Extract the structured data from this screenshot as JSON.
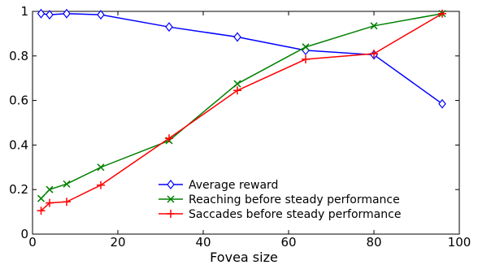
{
  "chart_data": {
    "type": "line",
    "title": "",
    "xlabel": "Fovea size",
    "ylabel": "",
    "xlim": [
      0,
      100
    ],
    "ylim": [
      0,
      1
    ],
    "xticks": [
      0,
      20,
      40,
      60,
      80,
      100
    ],
    "yticks": [
      0,
      0.2,
      0.4,
      0.6,
      0.8,
      1
    ],
    "ytick_labels": [
      "0",
      "0.2",
      "0.4",
      "0.6",
      "0.8",
      "1"
    ],
    "grid": false,
    "legend_position": "lower-center",
    "series": [
      {
        "name": "Average reward",
        "color": "#0000ff",
        "marker": "diamond",
        "x": [
          2,
          4,
          8,
          16,
          32,
          48,
          64,
          80,
          96
        ],
        "y": [
          0.99,
          0.985,
          0.99,
          0.985,
          0.93,
          0.885,
          0.825,
          0.805,
          0.585
        ]
      },
      {
        "name": "Reaching before steady performance",
        "color": "#008000",
        "marker": "x",
        "x": [
          2,
          4,
          8,
          16,
          32,
          48,
          64,
          80,
          96
        ],
        "y": [
          0.16,
          0.2,
          0.225,
          0.3,
          0.42,
          0.675,
          0.84,
          0.935,
          0.99
        ]
      },
      {
        "name": "Saccades before steady performance",
        "color": "#ff0000",
        "marker": "plus",
        "x": [
          2,
          4,
          8,
          16,
          32,
          48,
          64,
          80,
          96
        ],
        "y": [
          0.105,
          0.14,
          0.145,
          0.22,
          0.43,
          0.645,
          0.785,
          0.81,
          0.99
        ]
      }
    ]
  }
}
